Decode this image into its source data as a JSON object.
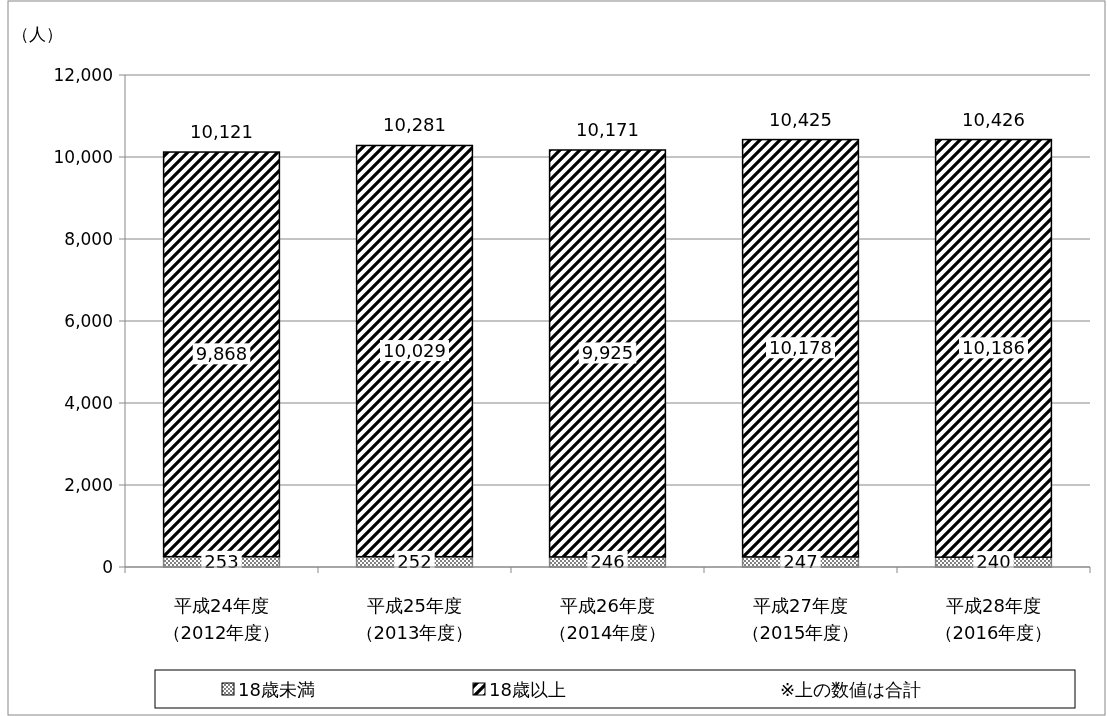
{
  "chart_data": {
    "type": "bar",
    "stacked": true,
    "ylabel": "（人）",
    "categories": [
      "平成24年度（2012年度）",
      "平成25年度（2013年度）",
      "平成26年度（2014年度）",
      "平成27年度（2015年度）",
      "平成28年度（2016年度）"
    ],
    "series": [
      {
        "name": "18歳未満",
        "color": "#808080",
        "values": [
          253,
          252,
          246,
          247,
          240
        ],
        "value_labels": [
          "253",
          "252",
          "246",
          "247",
          "240"
        ]
      },
      {
        "name": "18歳以上",
        "color": "#000000",
        "values": [
          9868,
          10029,
          9925,
          10178,
          10186
        ],
        "value_labels": [
          "9,868",
          "10,029",
          "9,925",
          "10,178",
          "10,186"
        ]
      }
    ],
    "totals": [
      "10,121",
      "10,281",
      "10,171",
      "10,425",
      "10,426"
    ],
    "ylim": [
      0,
      12000
    ],
    "yticks": [
      0,
      {
        "value": 2000,
        "label": "2,000"
      },
      {
        "value": 4000,
        "label": "4,000"
      },
      {
        "value": 6000,
        "label": "6,000"
      },
      {
        "value": 8000,
        "label": "8,000"
      },
      {
        "value": 10000,
        "label": "10,000"
      },
      {
        "value": 12000,
        "label": "12,000"
      }
    ],
    "grid": "y",
    "legend": "bottom",
    "annotations": [
      "※上の数値は合計"
    ]
  }
}
